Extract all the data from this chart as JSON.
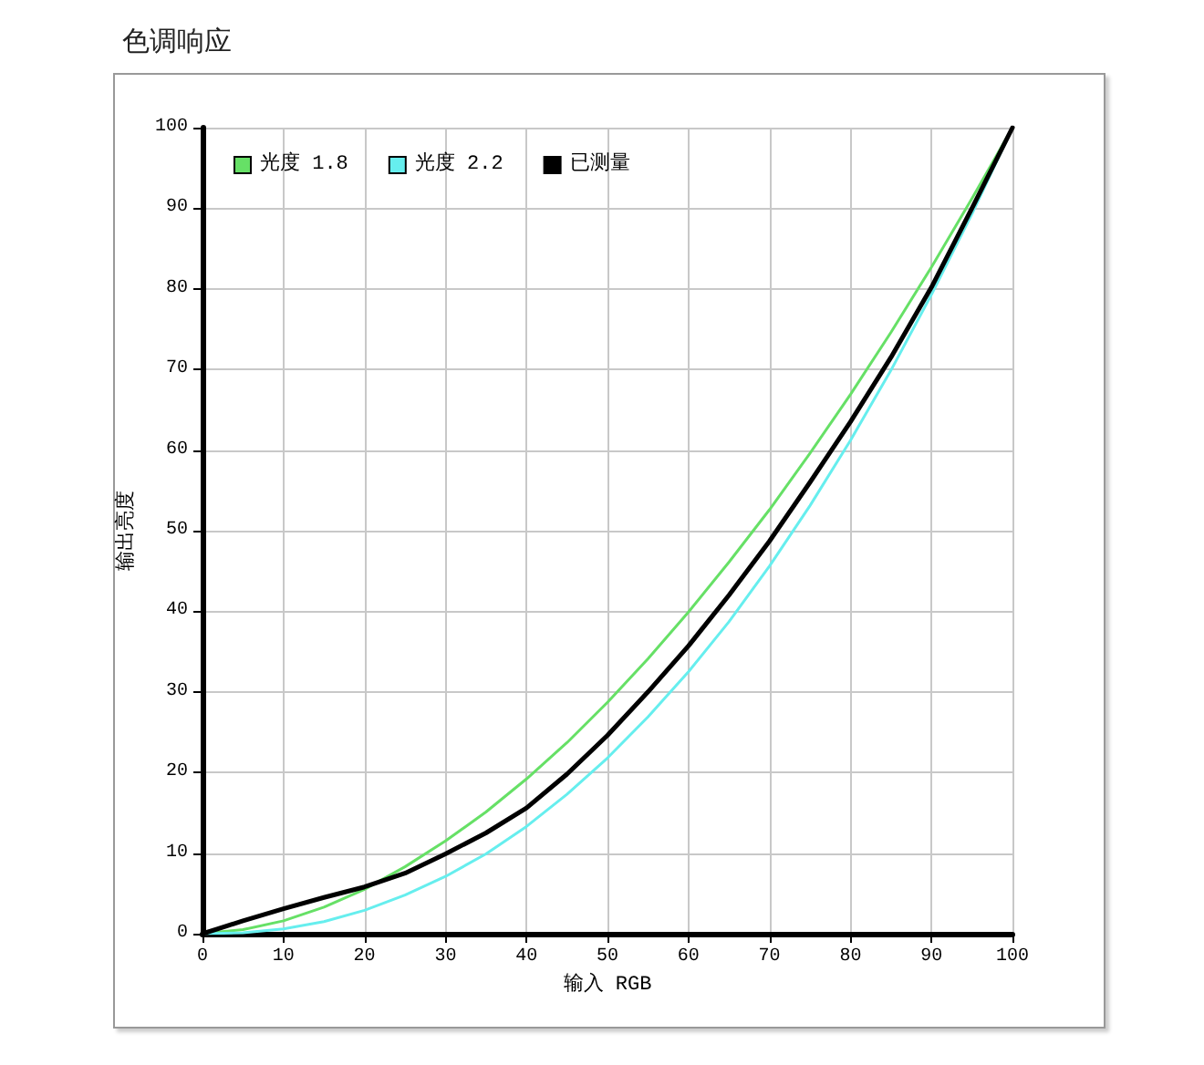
{
  "chart_data": {
    "type": "line",
    "title": "色调响应",
    "xlabel": "输入 RGB",
    "ylabel": "输出亮度",
    "x": [
      0,
      5,
      10,
      15,
      20,
      25,
      30,
      35,
      40,
      45,
      50,
      55,
      60,
      65,
      70,
      75,
      80,
      85,
      90,
      95,
      100
    ],
    "series": [
      {
        "name": "光度 1.8",
        "color": "#66e066",
        "values": [
          0,
          0.5,
          1.6,
          3.3,
          5.5,
          8.3,
          11.5,
          15.1,
          19.2,
          23.7,
          28.7,
          34.1,
          39.9,
          46.1,
          52.6,
          59.6,
          66.9,
          74.6,
          82.7,
          91.2,
          100
        ]
      },
      {
        "name": "光度 2.2",
        "color": "#66eeee",
        "values": [
          0,
          0.1,
          0.6,
          1.5,
          2.9,
          4.8,
          7.1,
          9.9,
          13.3,
          17.3,
          21.8,
          26.9,
          32.5,
          38.7,
          45.6,
          53.1,
          61.2,
          69.9,
          79.3,
          89.3,
          100
        ]
      },
      {
        "name": "已测量",
        "color": "#000000",
        "values": [
          0,
          1.6,
          3.1,
          4.5,
          5.8,
          7.5,
          9.9,
          12.5,
          15.6,
          19.8,
          24.6,
          30,
          35.7,
          42,
          48.7,
          56,
          63.5,
          71.5,
          80.2,
          90,
          100
        ]
      }
    ],
    "xlim": [
      0,
      100
    ],
    "ylim": [
      0,
      100
    ],
    "xticks": [
      0,
      10,
      20,
      30,
      40,
      50,
      60,
      70,
      80,
      90,
      100
    ],
    "yticks": [
      0,
      10,
      20,
      30,
      40,
      50,
      60,
      70,
      80,
      90,
      100
    ],
    "grid": true,
    "legend": "top left",
    "marker": "none",
    "line_style": "solid"
  }
}
